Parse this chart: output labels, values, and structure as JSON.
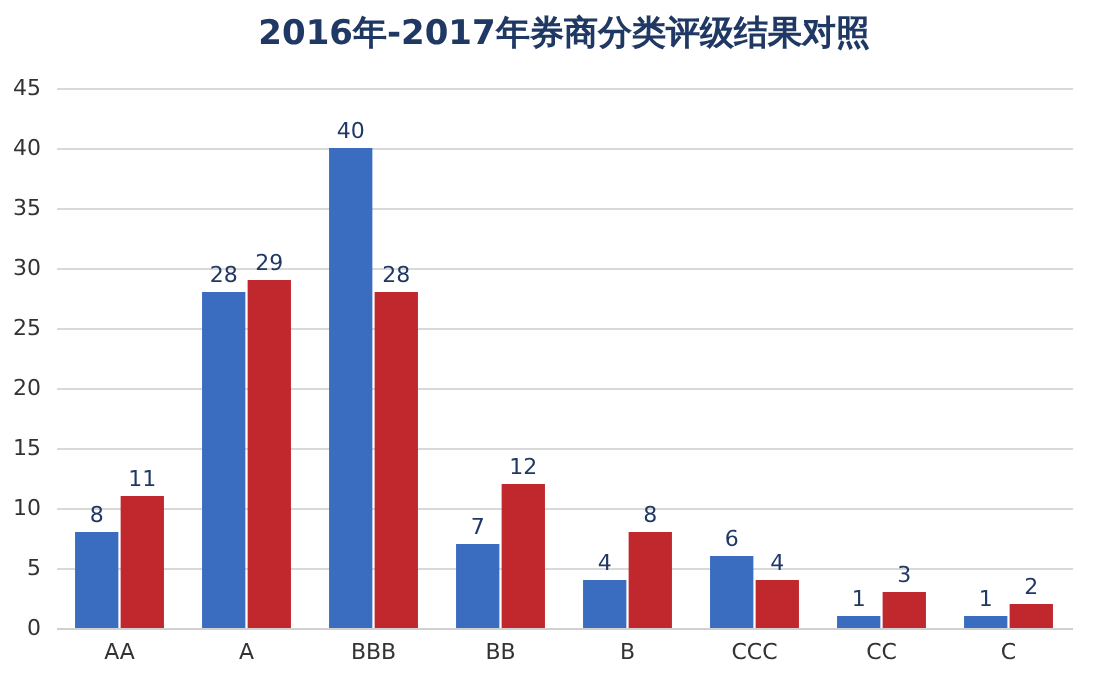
{
  "chart_data": {
    "type": "bar",
    "title": "2016年-2017年券商分类评级结果对照",
    "categories": [
      "AA",
      "A",
      "BBB",
      "BB",
      "B",
      "CCC",
      "CC",
      "C"
    ],
    "series": [
      {
        "color": "#3a6cc0",
        "values": [
          8,
          28,
          40,
          7,
          4,
          6,
          1,
          1
        ]
      },
      {
        "color": "#c0282e",
        "values": [
          11,
          29,
          28,
          12,
          8,
          4,
          3,
          2
        ]
      }
    ],
    "ylim": [
      0,
      45
    ],
    "yticks": [
      0,
      5,
      10,
      15,
      20,
      25,
      30,
      35,
      40,
      45
    ],
    "grid": "y",
    "data_labels": true,
    "legend": false
  }
}
